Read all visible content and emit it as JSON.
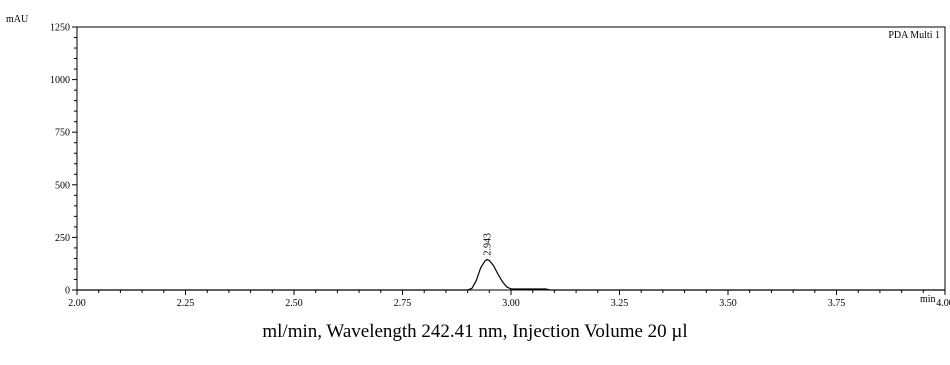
{
  "chart_data": {
    "type": "line",
    "title": "",
    "y_unit": "mAU",
    "x_unit": "min",
    "legend": {
      "label": "PDA Multi 1",
      "placement": "top-right"
    },
    "xlim": [
      2.0,
      4.0
    ],
    "ylim": [
      0,
      1250
    ],
    "x_ticks": [
      "2.00",
      "2.25",
      "2.50",
      "2.75",
      "3.00",
      "3.25",
      "3.50",
      "3.75",
      "4.00"
    ],
    "y_ticks": [
      "0",
      "250",
      "500",
      "750",
      "1000",
      "1250"
    ],
    "grid": false,
    "series": [
      {
        "x": [
          2.0,
          2.9,
          2.91,
          2.92,
          2.93,
          2.94,
          2.945,
          2.95,
          2.96,
          2.97,
          2.98,
          2.99,
          3.0,
          3.02,
          3.05,
          3.08,
          3.09,
          4.0
        ],
        "y": [
          0,
          0,
          8,
          45,
          105,
          138,
          145,
          140,
          115,
          75,
          40,
          15,
          5,
          5,
          5,
          5,
          0,
          0
        ]
      }
    ],
    "annotations": [
      {
        "text": "2.943",
        "x": 2.943,
        "y": 145
      }
    ]
  },
  "caption": "ml/min, Wavelength 242.41 nm, Injection Volume 20 µl"
}
